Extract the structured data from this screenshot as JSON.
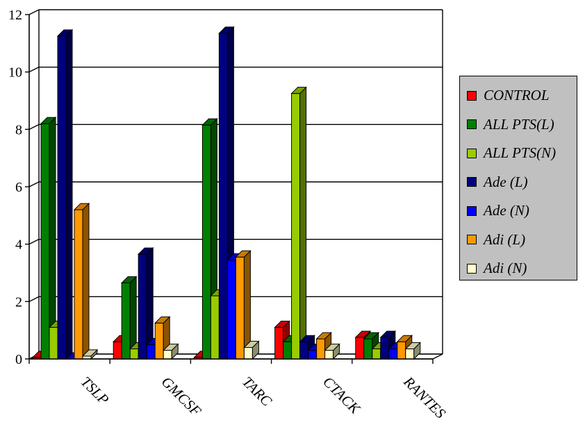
{
  "chart_data": {
    "type": "bar",
    "categories": [
      "TSLP",
      "GMCSF",
      "TARC",
      "CTACK",
      "RANTES"
    ],
    "ylim": [
      0,
      12
    ],
    "yticks": [
      0,
      2,
      4,
      6,
      8,
      10,
      12
    ],
    "grid": true,
    "legend_position": "right",
    "series": [
      {
        "name": "CONTROL",
        "color": "#ff0000",
        "values": [
          0.05,
          0.6,
          0.05,
          1.1,
          0.75
        ]
      },
      {
        "name": "ALL PTS(L)",
        "color": "#008000",
        "values": [
          8.2,
          2.65,
          8.15,
          0.6,
          0.7
        ]
      },
      {
        "name": "ALL PTS(N)",
        "color": "#99cc00",
        "values": [
          1.1,
          0.35,
          2.2,
          9.25,
          0.35
        ]
      },
      {
        "name": "Ade (L)",
        "color": "#000080",
        "values": [
          11.25,
          3.65,
          11.35,
          0.6,
          0.75
        ]
      },
      {
        "name": "Ade (N)",
        "color": "#0000ff",
        "values": [
          0,
          0.5,
          3.45,
          0.3,
          0.35
        ]
      },
      {
        "name": "Adi (L)",
        "color": "#ff9900",
        "values": [
          5.2,
          1.25,
          3.55,
          0.7,
          0.6
        ]
      },
      {
        "name": "Adi (N)",
        "color": "#ffffcc",
        "values": [
          0.1,
          0.3,
          0.4,
          0.3,
          0.35
        ]
      }
    ]
  }
}
